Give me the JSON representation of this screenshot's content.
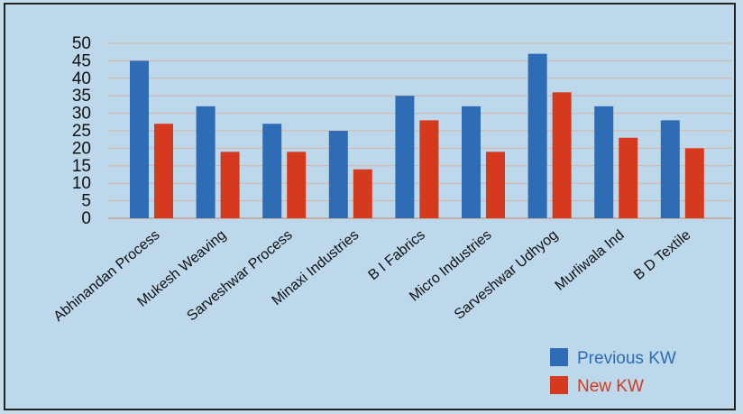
{
  "chart_data": {
    "type": "bar",
    "categories": [
      "Abhinandan Process",
      "Mukesh Weaving",
      "Sarveshwar Process",
      "Minaxi Industries",
      "B I Fabrics",
      "Micro Industries",
      "Sarveshwar Udhyog",
      "Murliwala Ind",
      "B D Textile"
    ],
    "series": [
      {
        "name": "Previous KW",
        "color": "#2e6db5",
        "values": [
          45,
          32,
          27,
          25,
          35,
          32,
          47,
          32,
          28
        ]
      },
      {
        "name": "New KW",
        "color": "#d63a1e",
        "values": [
          27,
          19,
          19,
          14,
          28,
          19,
          36,
          23,
          20
        ]
      }
    ],
    "yticks": [
      "0",
      "5",
      "10",
      "15",
      "20",
      "25",
      "30",
      "35",
      "40",
      "45",
      "50"
    ],
    "ylim": [
      0,
      50
    ],
    "grid": true,
    "legend_position": "bottom-right",
    "title": "",
    "xlabel": "",
    "ylabel": ""
  }
}
